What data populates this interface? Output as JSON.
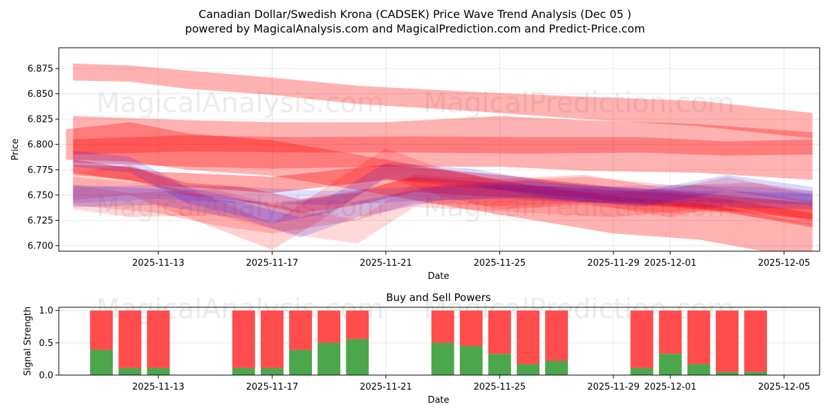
{
  "chart_data": [
    {
      "type": "area",
      "title_line1": "Canadian Dollar/Swedish Krona (CADSEK) Price Wave Trend Analysis (Dec 05 )",
      "title_line2": "powered by MagicalAnalysis.com and MagicalPrediction.com and Predict-Price.com",
      "xlabel": "Date",
      "ylabel": "Price",
      "xlim": [
        "2025-11-09T12:00",
        "2025-12-06T06:00"
      ],
      "ylim": [
        6.6945,
        6.8955
      ],
      "x_ticks": [
        "2025-11-13",
        "2025-11-17",
        "2025-11-21",
        "2025-11-25",
        "2025-11-29",
        "2025-12-01",
        "2025-12-05"
      ],
      "y_ticks": [
        6.7,
        6.725,
        6.75,
        6.775,
        6.8,
        6.825,
        6.85,
        6.875
      ],
      "y_tick_labels": [
        "6.700",
        "6.725",
        "6.750",
        "6.775",
        "6.800",
        "6.825",
        "6.850",
        "6.875"
      ],
      "grid": true,
      "watermarks": [
        "MagicalAnalysis.com",
        "MagicalPrediction.com"
      ],
      "colors": {
        "red": "#ff0000",
        "blue": "#0000ff",
        "grid": "#b0b0b0"
      },
      "series": [
        {
          "name": "wave-top",
          "color": "red",
          "opacity": 0.3,
          "points": [
            [
              "2025-11-10",
              6.88,
              6.863
            ],
            [
              "2025-11-12",
              6.878,
              6.862
            ],
            [
              "2025-11-14",
              6.873,
              6.855
            ],
            [
              "2025-11-17",
              6.866,
              6.849
            ],
            [
              "2025-11-20",
              6.858,
              6.84
            ],
            [
              "2025-11-24",
              6.852,
              6.833
            ],
            [
              "2025-11-28",
              6.847,
              6.825
            ],
            [
              "2025-12-02",
              6.843,
              6.818
            ],
            [
              "2025-12-06",
              6.831,
              6.806
            ]
          ]
        },
        {
          "name": "wave-upper-broad",
          "color": "red",
          "opacity": 0.3,
          "points": [
            [
              "2025-11-10",
              6.828,
              6.782
            ],
            [
              "2025-11-14",
              6.824,
              6.778
            ],
            [
              "2025-11-17",
              6.822,
              6.776
            ],
            [
              "2025-11-21",
              6.822,
              6.778
            ],
            [
              "2025-11-25",
              6.828,
              6.778
            ],
            [
              "2025-11-28",
              6.824,
              6.774
            ],
            [
              "2025-12-02",
              6.82,
              6.772
            ],
            [
              "2025-12-06",
              6.812,
              6.765
            ]
          ]
        },
        {
          "name": "wave-upper-narrow",
          "color": "red",
          "opacity": 0.3,
          "points": [
            [
              "2025-11-10",
              6.805,
              6.79
            ],
            [
              "2025-11-14",
              6.809,
              6.793
            ],
            [
              "2025-11-18",
              6.807,
              6.792
            ],
            [
              "2025-11-22",
              6.808,
              6.792
            ],
            [
              "2025-11-26",
              6.807,
              6.791
            ],
            [
              "2025-11-30",
              6.807,
              6.792
            ],
            [
              "2025-12-03",
              6.803,
              6.789
            ],
            [
              "2025-12-06",
              6.805,
              6.79
            ]
          ]
        },
        {
          "name": "wave-mid-descending",
          "color": "red",
          "opacity": 0.3,
          "points": [
            [
              "2025-11-09T18:00",
              6.815,
              6.785
            ],
            [
              "2025-11-12",
              6.822,
              6.783
            ],
            [
              "2025-11-14",
              6.811,
              6.775
            ],
            [
              "2025-11-17",
              6.804,
              6.769
            ],
            [
              "2025-11-20",
              6.79,
              6.755
            ],
            [
              "2025-11-23",
              6.775,
              6.74
            ],
            [
              "2025-11-26",
              6.76,
              6.726
            ],
            [
              "2025-11-29",
              6.749,
              6.712
            ],
            [
              "2025-12-02",
              6.742,
              6.706
            ],
            [
              "2025-12-06",
              6.722,
              6.686
            ]
          ]
        },
        {
          "name": "wave-dark-core",
          "color": "red",
          "opacity": 0.35,
          "points": [
            [
              "2025-11-10",
              6.785,
              6.772
            ],
            [
              "2025-11-13",
              6.773,
              6.76
            ],
            [
              "2025-11-17",
              6.768,
              6.752
            ],
            [
              "2025-11-21",
              6.78,
              6.765
            ],
            [
              "2025-11-25",
              6.77,
              6.755
            ],
            [
              "2025-11-29",
              6.758,
              6.744
            ],
            [
              "2025-12-02",
              6.752,
              6.737
            ],
            [
              "2025-12-06",
              6.742,
              6.726
            ]
          ]
        },
        {
          "name": "wave-dark-falling",
          "color": "red",
          "opacity": 0.3,
          "points": [
            [
              "2025-11-10",
              6.78,
              6.77
            ],
            [
              "2025-11-12",
              6.778,
              6.765
            ],
            [
              "2025-11-14",
              6.762,
              6.75
            ],
            [
              "2025-11-16",
              6.758,
              6.744
            ],
            [
              "2025-11-18",
              6.746,
              6.732
            ],
            [
              "2025-11-20",
              6.754,
              6.74
            ],
            [
              "2025-11-22",
              6.768,
              6.753
            ],
            [
              "2025-11-25",
              6.762,
              6.748
            ],
            [
              "2025-11-28",
              6.756,
              6.743
            ],
            [
              "2025-12-01",
              6.752,
              6.738
            ],
            [
              "2025-12-03",
              6.746,
              6.733
            ],
            [
              "2025-12-06",
              6.732,
              6.718
            ]
          ]
        },
        {
          "name": "wave-jagged-a",
          "color": "red",
          "opacity": 0.18,
          "points": [
            [
              "2025-11-10",
              6.772,
              6.745
            ],
            [
              "2025-11-12",
              6.78,
              6.75
            ],
            [
              "2025-11-14",
              6.758,
              6.728
            ],
            [
              "2025-11-17",
              6.722,
              6.696
            ],
            [
              "2025-11-19",
              6.76,
              6.73
            ],
            [
              "2025-11-21",
              6.796,
              6.768
            ],
            [
              "2025-11-23",
              6.776,
              6.748
            ],
            [
              "2025-11-25",
              6.764,
              6.736
            ],
            [
              "2025-11-28",
              6.768,
              6.74
            ],
            [
              "2025-12-01",
              6.76,
              6.732
            ],
            [
              "2025-12-04",
              6.762,
              6.735
            ],
            [
              "2025-12-06",
              6.754,
              6.725
            ]
          ]
        },
        {
          "name": "wave-jagged-b",
          "color": "red",
          "opacity": 0.18,
          "points": [
            [
              "2025-11-10",
              6.768,
              6.74
            ],
            [
              "2025-11-13",
              6.76,
              6.732
            ],
            [
              "2025-11-15",
              6.748,
              6.72
            ],
            [
              "2025-11-17",
              6.742,
              6.712
            ],
            [
              "2025-11-20",
              6.752,
              6.725
            ],
            [
              "2025-11-22",
              6.77,
              6.742
            ],
            [
              "2025-11-25",
              6.766,
              6.739
            ],
            [
              "2025-11-28",
              6.77,
              6.742
            ],
            [
              "2025-12-01",
              6.756,
              6.728
            ],
            [
              "2025-12-03",
              6.768,
              6.74
            ],
            [
              "2025-12-06",
              6.75,
              6.722
            ]
          ]
        },
        {
          "name": "wave-jagged-c",
          "color": "red",
          "opacity": 0.15,
          "points": [
            [
              "2025-11-10",
              6.76,
              6.736
            ],
            [
              "2025-11-12",
              6.752,
              6.728
            ],
            [
              "2025-11-15",
              6.756,
              6.73
            ],
            [
              "2025-11-18",
              6.734,
              6.71
            ],
            [
              "2025-11-20",
              6.726,
              6.702
            ],
            [
              "2025-11-22",
              6.762,
              6.738
            ],
            [
              "2025-11-25",
              6.758,
              6.734
            ],
            [
              "2025-11-29",
              6.752,
              6.728
            ],
            [
              "2025-12-02",
              6.76,
              6.736
            ],
            [
              "2025-12-06",
              6.744,
              6.72
            ]
          ]
        },
        {
          "name": "wave-blue-a",
          "color": "blue",
          "opacity": 0.15,
          "points": [
            [
              "2025-11-10",
              6.794,
              6.778
            ],
            [
              "2025-11-12",
              6.788,
              6.772
            ],
            [
              "2025-11-14",
              6.758,
              6.742
            ],
            [
              "2025-11-17",
              6.74,
              6.722
            ],
            [
              "2025-11-19",
              6.748,
              6.732
            ],
            [
              "2025-11-21",
              6.782,
              6.766
            ],
            [
              "2025-11-24",
              6.776,
              6.76
            ],
            [
              "2025-11-27",
              6.762,
              6.746
            ],
            [
              "2025-11-30",
              6.754,
              6.738
            ],
            [
              "2025-12-03",
              6.77,
              6.754
            ],
            [
              "2025-12-06",
              6.758,
              6.742
            ]
          ]
        },
        {
          "name": "wave-blue-b",
          "color": "blue",
          "opacity": 0.15,
          "points": [
            [
              "2025-11-10",
              6.76,
              6.738
            ],
            [
              "2025-11-13",
              6.756,
              6.74
            ],
            [
              "2025-11-16",
              6.742,
              6.726
            ],
            [
              "2025-11-18",
              6.728,
              6.708
            ],
            [
              "2025-11-20",
              6.744,
              6.728
            ],
            [
              "2025-11-23",
              6.76,
              6.745
            ],
            [
              "2025-11-26",
              6.764,
              6.748
            ],
            [
              "2025-11-29",
              6.758,
              6.742
            ],
            [
              "2025-12-02",
              6.754,
              6.738
            ],
            [
              "2025-12-06",
              6.752,
              6.736
            ]
          ]
        },
        {
          "name": "wave-blue-c",
          "color": "blue",
          "opacity": 0.12,
          "points": [
            [
              "2025-11-10",
              6.758,
              6.742
            ],
            [
              "2025-11-13",
              6.76,
              6.746
            ],
            [
              "2025-11-16",
              6.758,
              6.742
            ],
            [
              "2025-11-19",
              6.754,
              6.74
            ],
            [
              "2025-11-22",
              6.758,
              6.744
            ],
            [
              "2025-11-25",
              6.76,
              6.746
            ],
            [
              "2025-11-28",
              6.758,
              6.742
            ],
            [
              "2025-12-01",
              6.76,
              6.744
            ],
            [
              "2025-12-04",
              6.758,
              6.742
            ],
            [
              "2025-12-06",
              6.754,
              6.74
            ]
          ]
        }
      ]
    },
    {
      "type": "bar",
      "title": "Buy and Sell Powers",
      "xlabel": "Date",
      "ylabel": "Signal Strength",
      "xlim": [
        "2025-11-09T12:00",
        "2025-12-06T06:00"
      ],
      "ylim": [
        0,
        1.05
      ],
      "x_ticks": [
        "2025-11-13",
        "2025-11-17",
        "2025-11-21",
        "2025-11-25",
        "2025-11-29",
        "2025-12-01",
        "2025-12-05"
      ],
      "y_ticks": [
        0,
        0.5,
        1.0
      ],
      "y_tick_labels": [
        "0.0",
        "0.5",
        "1.0"
      ],
      "grid": true,
      "watermarks": [
        "MagicalAnalysis.com",
        "MagicalPrediction.com"
      ],
      "colors": {
        "buy": "#4ca64c",
        "sell": "#ff4d4d"
      },
      "series": [
        {
          "name": "Buy",
          "color": "buy"
        },
        {
          "name": "Sell",
          "color": "sell"
        }
      ],
      "categories": [
        "2025-11-11",
        "2025-11-12",
        "2025-11-13",
        "2025-11-16",
        "2025-11-17",
        "2025-11-18",
        "2025-11-19",
        "2025-11-20",
        "2025-11-23",
        "2025-11-24",
        "2025-11-25",
        "2025-11-26",
        "2025-11-27",
        "2025-11-30",
        "2025-12-01",
        "2025-12-02",
        "2025-12-03",
        "2025-12-04"
      ],
      "buy": [
        0.39,
        0.11,
        0.11,
        0.11,
        0.11,
        0.39,
        0.5,
        0.56,
        0.5,
        0.45,
        0.33,
        0.17,
        0.22,
        0.11,
        0.33,
        0.17,
        0.05,
        0.05
      ],
      "sell": [
        0.61,
        0.89,
        0.89,
        0.89,
        0.89,
        0.61,
        0.5,
        0.44,
        0.5,
        0.55,
        0.67,
        0.83,
        0.78,
        0.89,
        0.67,
        0.83,
        0.95,
        0.95
      ]
    }
  ]
}
